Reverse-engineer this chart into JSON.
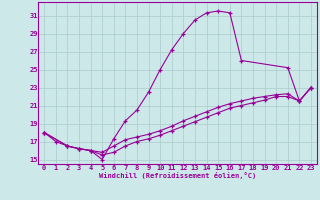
{
  "xlabel": "Windchill (Refroidissement éolien,°C)",
  "xlim": [
    -0.5,
    23.5
  ],
  "ylim": [
    14.5,
    32.5
  ],
  "yticks": [
    15,
    17,
    19,
    21,
    23,
    25,
    27,
    29,
    31
  ],
  "xticks": [
    0,
    1,
    2,
    3,
    4,
    5,
    6,
    7,
    8,
    9,
    10,
    11,
    12,
    13,
    14,
    15,
    16,
    17,
    18,
    19,
    20,
    21,
    22,
    23
  ],
  "bg_color": "#cce8e8",
  "line_color": "#990099",
  "grid_color": "#aacccc",
  "series1_x": [
    0,
    1,
    2,
    3,
    4,
    5,
    6,
    7,
    8,
    9,
    10,
    11,
    12,
    13,
    14,
    15,
    16,
    17,
    21,
    22,
    23
  ],
  "series1_y": [
    18,
    17,
    16.5,
    16.2,
    16,
    15,
    17.3,
    19.3,
    20.5,
    22.5,
    25,
    27.2,
    29,
    30.5,
    31.3,
    31.5,
    31.3,
    26,
    25.2,
    21.5,
    23
  ],
  "series2_x": [
    0,
    2,
    3,
    4,
    5,
    6,
    7,
    8,
    9,
    10,
    11,
    12,
    13,
    14,
    15,
    16,
    17,
    18,
    19,
    20,
    21,
    22,
    23
  ],
  "series2_y": [
    18,
    16.5,
    16.2,
    16,
    15.8,
    16.5,
    17.2,
    17.5,
    17.8,
    18.2,
    18.7,
    19.3,
    19.8,
    20.3,
    20.8,
    21.2,
    21.5,
    21.8,
    22,
    22.2,
    22.3,
    21.5,
    23
  ],
  "series3_x": [
    0,
    2,
    3,
    4,
    5,
    6,
    7,
    8,
    9,
    10,
    11,
    12,
    13,
    14,
    15,
    16,
    17,
    18,
    19,
    20,
    21,
    22,
    23
  ],
  "series3_y": [
    18,
    16.5,
    16.2,
    16,
    15.5,
    15.8,
    16.5,
    17,
    17.3,
    17.7,
    18.2,
    18.7,
    19.2,
    19.7,
    20.2,
    20.7,
    21,
    21.3,
    21.6,
    22,
    22,
    21.5,
    23
  ]
}
